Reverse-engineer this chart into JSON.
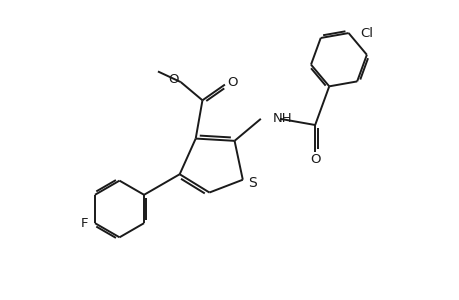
{
  "background_color": "#ffffff",
  "line_color": "#1a1a1a",
  "line_width": 1.4,
  "font_size": 9.5,
  "figsize": [
    4.6,
    3.0
  ],
  "dpi": 100,
  "xlim": [
    0,
    10
  ],
  "ylim": [
    0,
    6.5
  ]
}
